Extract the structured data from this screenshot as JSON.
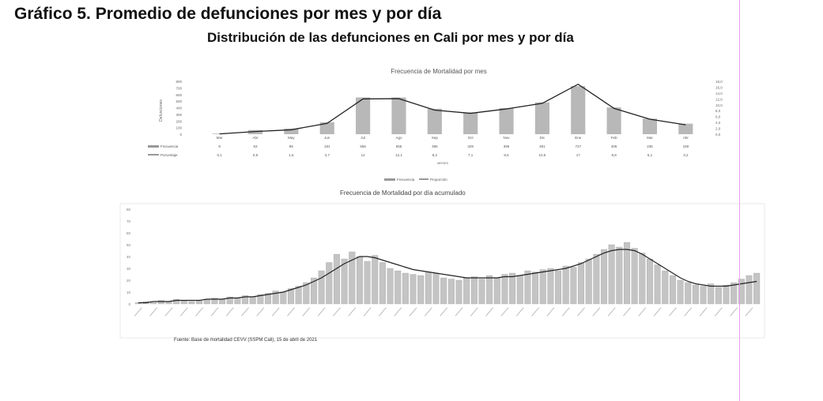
{
  "title": "Gráfico 5. Promedio de defunciones por mes y por día",
  "subtitle": "Distribución de las defunciones en Cali por mes y por día",
  "source": "Fuente: Base de mortalidad CEVV (SSPM Cali), 15 de abril de 2021",
  "chart_data": [
    {
      "type": "bar",
      "title": "Frecuencia de Mortalidad por mes",
      "ylabel": "Defunciones",
      "xlabel": "MESES",
      "categories": [
        "Mar",
        "Abr",
        "May",
        "Jun",
        "Jul",
        "Ago",
        "Sep",
        "Oct",
        "Nov",
        "Dic",
        "Ene",
        "Feb",
        "Mar",
        "Abr"
      ],
      "series": [
        {
          "name": "Frecuencia",
          "values": [
            9,
            63,
            86,
            181,
            556,
            555,
            385,
            329,
            396,
            481,
            727,
            405,
            235,
            159
          ]
        },
        {
          "name": "Porcentaje",
          "values": [
            0.1,
            0.9,
            1.5,
            3.7,
            12.0,
            12.1,
            8.2,
            7.1,
            8.6,
            10.5,
            17.0,
            8.8,
            5.1,
            3.2
          ]
        }
      ],
      "ylim": [
        0,
        800
      ],
      "y2lim": [
        0,
        18
      ],
      "yticks": [
        "0",
        "100",
        "200",
        "300",
        "400",
        "500",
        "600",
        "700",
        "800"
      ],
      "y2ticks": [
        "0,0",
        "2,0",
        "4,0",
        "6,0",
        "8,0",
        "10,0",
        "12,0",
        "14,0",
        "16,0",
        "18,0"
      ],
      "legend": [
        "Frecuencia",
        "Proporción"
      ]
    },
    {
      "type": "bar",
      "title": "Frecuencia de Mortalidad por día acumulado",
      "ylim": [
        0,
        80
      ],
      "yticks": [
        "0",
        "10",
        "20",
        "30",
        "40",
        "50",
        "60",
        "70",
        "80"
      ],
      "values": [
        1,
        2,
        1,
        3,
        2,
        4,
        3,
        2,
        3,
        4,
        5,
        4,
        6,
        5,
        7,
        6,
        8,
        9,
        11,
        10,
        13,
        15,
        18,
        22,
        28,
        35,
        42,
        38,
        44,
        40,
        36,
        41,
        35,
        30,
        28,
        26,
        25,
        24,
        27,
        26,
        22,
        21,
        20,
        22,
        23,
        21,
        24,
        22,
        25,
        26,
        24,
        28,
        27,
        29,
        30,
        28,
        32,
        31,
        35,
        38,
        42,
        46,
        50,
        48,
        52,
        47,
        43,
        38,
        33,
        28,
        24,
        20,
        18,
        16,
        15,
        17,
        14,
        16,
        18,
        21,
        24,
        26
      ],
      "trend": [
        1,
        1,
        2,
        2,
        2,
        3,
        3,
        3,
        3,
        4,
        4,
        4,
        5,
        5,
        6,
        6,
        7,
        8,
        9,
        10,
        12,
        14,
        16,
        19,
        22,
        26,
        30,
        34,
        37,
        40,
        40,
        39,
        37,
        35,
        33,
        31,
        29,
        28,
        27,
        26,
        25,
        24,
        23,
        22,
        22,
        22,
        22,
        22,
        23,
        23,
        24,
        25,
        26,
        27,
        28,
        29,
        30,
        32,
        34,
        37,
        40,
        43,
        45,
        46,
        46,
        45,
        42,
        38,
        34,
        30,
        26,
        22,
        19,
        17,
        16,
        15,
        15,
        15,
        16,
        17,
        18,
        19
      ]
    }
  ]
}
